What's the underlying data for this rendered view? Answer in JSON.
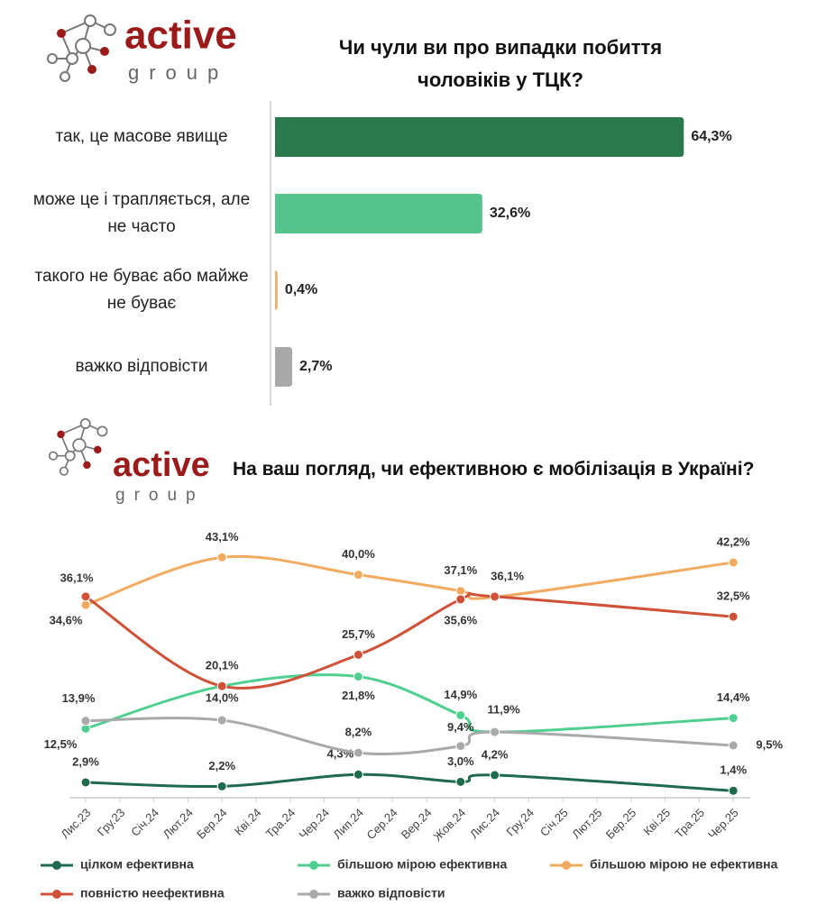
{
  "logo": {
    "name": "active",
    "tagline": "group"
  },
  "chart_data": [
    {
      "type": "hbar",
      "title": "Чи чули ви про випадки побиття чоловіків у ТЦК?",
      "categories": [
        "так, це масове явище",
        "може це і трапляється, але не часто",
        "такого не буває або майже не буває",
        "важко відповісти"
      ],
      "values": [
        64.3,
        32.6,
        0.4,
        2.7
      ],
      "value_labels": [
        "64,3%",
        "32,6%",
        "0,4%",
        "2,7%"
      ],
      "colors": [
        "#2b7a4e",
        "#54c48c",
        "#f3ae68",
        "#a8a8a8"
      ]
    },
    {
      "type": "line",
      "title": "На ваш погляд, чи ефективною є мобілізація в Україні?",
      "categories": [
        "Лис.23",
        "Гру.23",
        "Січ.24",
        "Лют.24",
        "Бер.24",
        "Кві.24",
        "Тра.24",
        "Чер.24",
        "Лип.24",
        "Сер.24",
        "Вер.24",
        "Жов.24",
        "Лис.24",
        "Гру.24",
        "Січ.25",
        "Лют.25",
        "Бер.25",
        "Кві.25",
        "Тра.25",
        "Чер.25"
      ],
      "x": [
        "Лис.23",
        "Бер.24",
        "Лип.24",
        "Жов.24",
        "Лис.24",
        "Чер.25"
      ],
      "series": [
        {
          "name": "цілком ефективна",
          "color": "#1e6a4c",
          "values": [
            2.9,
            2.2,
            4.3,
            3.0,
            4.2,
            1.4
          ],
          "value_labels": [
            "2,9%",
            "2,2%",
            "4,3%",
            "3,0%",
            "4,2%",
            "1,4%"
          ]
        },
        {
          "name": "більшою мірою ефективна",
          "color": "#4fcf8f",
          "values": [
            12.5,
            20.1,
            21.8,
            14.9,
            11.9,
            14.4
          ],
          "value_labels": [
            "12,5%",
            null,
            "21,8%",
            "14,9%",
            "11,9%",
            "14,4%"
          ]
        },
        {
          "name": "більшою мірою не ефективна",
          "color": "#f2aa5e",
          "values": [
            34.6,
            43.1,
            40.0,
            37.1,
            36.0,
            42.2
          ],
          "value_labels": [
            "34,6%",
            "43,1%",
            "40,0%",
            "37,1%",
            null,
            "42,2%"
          ]
        },
        {
          "name": "повністю неефективна",
          "color": "#cf5138",
          "values": [
            36.1,
            20.1,
            25.7,
            35.6,
            36.1,
            32.5
          ],
          "value_labels": [
            "36,1%",
            "20,1%",
            "25,7%",
            "35,6%",
            "36,1%",
            "32,5%"
          ]
        },
        {
          "name": "важко відповісти",
          "color": "#a9a9a9",
          "values": [
            13.9,
            14.0,
            8.2,
            9.4,
            11.9,
            9.5
          ],
          "value_labels": [
            "13,9%",
            "14,0%",
            "8,2%",
            "9,4%",
            null,
            "9,5%"
          ]
        }
      ]
    }
  ]
}
